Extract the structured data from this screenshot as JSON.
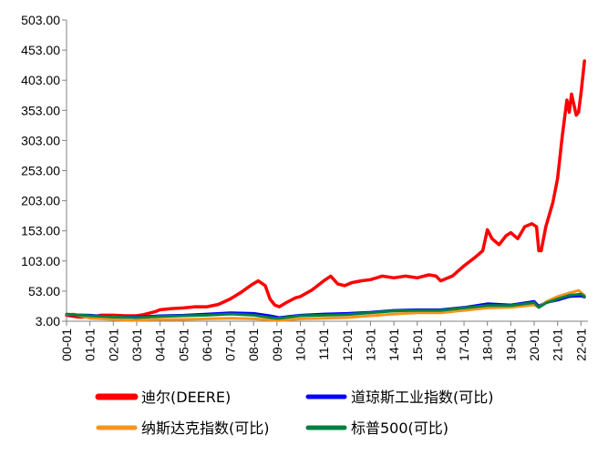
{
  "chart_data": {
    "type": "line",
    "title": "",
    "xlabel": "",
    "ylabel": "",
    "ylim": [
      3,
      503
    ],
    "y_ticks": [
      "3.00",
      "53.00",
      "103.00",
      "153.00",
      "203.00",
      "253.00",
      "303.00",
      "353.00",
      "403.00",
      "453.00",
      "503.00"
    ],
    "x_ticks": [
      "00-01",
      "01-01",
      "02-01",
      "03-01",
      "04-01",
      "05-01",
      "06-01",
      "07-01",
      "08-01",
      "09-01",
      "10-01",
      "11-01",
      "12-01",
      "13-01",
      "14-01",
      "15-01",
      "16-01",
      "17-01",
      "18-01",
      "19-01",
      "20-01",
      "21-01",
      "22-01"
    ],
    "grid": false,
    "legend_position": "bottom",
    "series": [
      {
        "name": "迪尔(DEERE)",
        "color": "#FF0000",
        "x": [
          2000.0,
          2000.5,
          2001.0,
          2001.5,
          2002.0,
          2002.5,
          2003.0,
          2003.3,
          2003.8,
          2004.0,
          2004.5,
          2005.0,
          2005.5,
          2006.0,
          2006.5,
          2007.0,
          2007.5,
          2007.9,
          2008.2,
          2008.5,
          2008.7,
          2008.9,
          2009.1,
          2009.4,
          2009.8,
          2010.0,
          2010.5,
          2011.0,
          2011.3,
          2011.6,
          2011.9,
          2012.2,
          2012.6,
          2013.0,
          2013.5,
          2014.0,
          2014.5,
          2015.0,
          2015.5,
          2015.8,
          2016.0,
          2016.5,
          2017.0,
          2017.5,
          2017.8,
          2018.0,
          2018.2,
          2018.5,
          2018.8,
          2019.0,
          2019.3,
          2019.6,
          2019.9,
          2020.1,
          2020.2,
          2020.3,
          2020.5,
          2020.8,
          2021.0,
          2021.2,
          2021.4,
          2021.5,
          2021.6,
          2021.8,
          2021.9,
          2022.0,
          2022.15
        ],
        "values": [
          13,
          10,
          10,
          13,
          13,
          12,
          12,
          14,
          19,
          22,
          24,
          25,
          27,
          27,
          31,
          40,
          52,
          63,
          70,
          62,
          40,
          30,
          27,
          34,
          42,
          44,
          55,
          70,
          78,
          65,
          62,
          67,
          70,
          72,
          78,
          75,
          78,
          75,
          80,
          78,
          70,
          78,
          95,
          110,
          120,
          155,
          140,
          130,
          145,
          150,
          140,
          160,
          165,
          160,
          120,
          120,
          160,
          200,
          240,
          310,
          370,
          350,
          380,
          345,
          350,
          380,
          435
        ]
      },
      {
        "name": "道琼斯工业指数(可比)",
        "color": "#0000FF",
        "x": [
          2000.0,
          2001.0,
          2002.0,
          2003.0,
          2004.0,
          2005.0,
          2006.0,
          2007.0,
          2008.0,
          2008.7,
          2009.1,
          2009.5,
          2010.0,
          2011.0,
          2012.0,
          2013.0,
          2014.0,
          2015.0,
          2016.0,
          2017.0,
          2018.0,
          2019.0,
          2020.0,
          2020.2,
          2020.5,
          2021.0,
          2021.5,
          2022.0,
          2022.15
        ],
        "values": [
          14,
          13,
          10,
          10,
          12,
          13,
          15,
          17,
          16,
          12,
          9,
          11,
          13,
          15,
          16,
          18,
          21,
          22,
          22,
          26,
          32,
          30,
          36,
          28,
          34,
          38,
          44,
          45,
          43
        ]
      },
      {
        "name": "纳斯达克指数(可比)",
        "color": "#F7941D",
        "x": [
          2000.0,
          2000.3,
          2001.0,
          2002.0,
          2002.8,
          2003.0,
          2004.0,
          2005.0,
          2006.0,
          2007.0,
          2008.0,
          2008.9,
          2009.1,
          2010.0,
          2011.0,
          2012.0,
          2013.0,
          2014.0,
          2015.0,
          2016.0,
          2017.0,
          2018.0,
          2019.0,
          2020.0,
          2020.2,
          2020.5,
          2021.0,
          2021.5,
          2021.9,
          2022.15
        ],
        "values": [
          14,
          15,
          8,
          6,
          4,
          5,
          6,
          6,
          7,
          8,
          7,
          5,
          4,
          7,
          8,
          9,
          12,
          15,
          17,
          17,
          21,
          25,
          26,
          30,
          26,
          35,
          44,
          50,
          54,
          46
        ]
      },
      {
        "name": "标普500(可比)",
        "color": "#008040",
        "x": [
          2000.0,
          2001.0,
          2002.0,
          2003.0,
          2004.0,
          2005.0,
          2006.0,
          2007.0,
          2008.0,
          2008.9,
          2009.1,
          2010.0,
          2011.0,
          2012.0,
          2013.0,
          2014.0,
          2015.0,
          2016.0,
          2017.0,
          2018.0,
          2019.0,
          2020.0,
          2020.2,
          2020.5,
          2021.0,
          2021.5,
          2022.0,
          2022.15
        ],
        "values": [
          15,
          12,
          10,
          9,
          11,
          12,
          13,
          15,
          13,
          8,
          8,
          12,
          13,
          14,
          17,
          20,
          21,
          21,
          25,
          29,
          29,
          34,
          26,
          33,
          40,
          46,
          48,
          44
        ]
      }
    ]
  }
}
